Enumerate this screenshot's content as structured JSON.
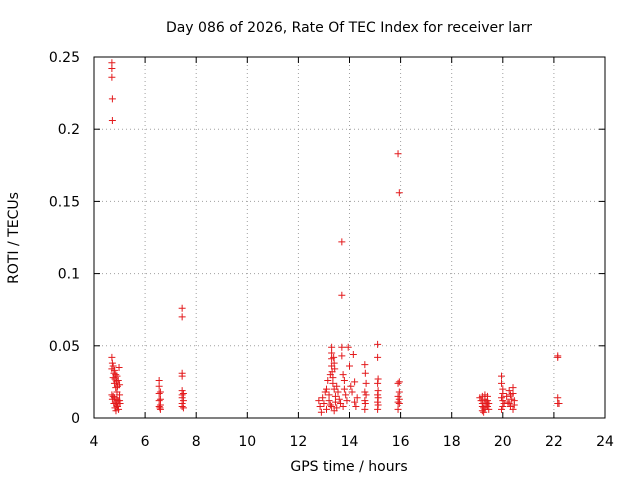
{
  "chart_data": {
    "type": "scatter",
    "title": "Day 086 of 2026, Rate Of TEC Index for receiver larr",
    "xlabel": "GPS time / hours",
    "ylabel": "ROTI / TECUs",
    "xlim": [
      4,
      24
    ],
    "ylim": [
      0,
      0.25
    ],
    "xticks": [
      4,
      6,
      8,
      10,
      12,
      14,
      16,
      18,
      20,
      22,
      24
    ],
    "yticks": [
      0,
      0.05,
      0.1,
      0.15,
      0.2,
      0.25
    ],
    "ytick_labels": [
      "0",
      "0.05",
      "0.1",
      "0.15",
      "0.2",
      "0.25"
    ],
    "grid": true,
    "marker": "+",
    "color": "#e31a1c",
    "series": [
      {
        "name": "ROTI",
        "points": [
          [
            4.7,
            0.246
          ],
          [
            4.7,
            0.242
          ],
          [
            4.7,
            0.236
          ],
          [
            4.72,
            0.221
          ],
          [
            4.72,
            0.206
          ],
          [
            4.7,
            0.042
          ],
          [
            4.72,
            0.038
          ],
          [
            4.75,
            0.036
          ],
          [
            4.7,
            0.034
          ],
          [
            4.8,
            0.033
          ],
          [
            4.78,
            0.031
          ],
          [
            4.85,
            0.03
          ],
          [
            4.9,
            0.029
          ],
          [
            4.75,
            0.028
          ],
          [
            4.82,
            0.027
          ],
          [
            4.95,
            0.026
          ],
          [
            4.88,
            0.025
          ],
          [
            4.8,
            0.024
          ],
          [
            5.0,
            0.023
          ],
          [
            4.92,
            0.022
          ],
          [
            4.85,
            0.021
          ],
          [
            4.7,
            0.016
          ],
          [
            4.75,
            0.015
          ],
          [
            4.8,
            0.014
          ],
          [
            4.9,
            0.013
          ],
          [
            4.95,
            0.012
          ],
          [
            4.85,
            0.011
          ],
          [
            4.78,
            0.01
          ],
          [
            4.88,
            0.009
          ],
          [
            4.92,
            0.008
          ],
          [
            4.82,
            0.007
          ],
          [
            4.96,
            0.006
          ],
          [
            5.0,
            0.012
          ],
          [
            5.02,
            0.01
          ],
          [
            4.72,
            0.013
          ],
          [
            4.98,
            0.035
          ],
          [
            5.0,
            0.016
          ],
          [
            4.9,
            0.018
          ],
          [
            4.86,
            0.005
          ],
          [
            6.55,
            0.026
          ],
          [
            6.55,
            0.022
          ],
          [
            6.6,
            0.018
          ],
          [
            6.55,
            0.017
          ],
          [
            6.6,
            0.013
          ],
          [
            6.55,
            0.012
          ],
          [
            6.6,
            0.009
          ],
          [
            6.55,
            0.008
          ],
          [
            6.58,
            0.007
          ],
          [
            6.6,
            0.006
          ],
          [
            7.45,
            0.076
          ],
          [
            7.45,
            0.07
          ],
          [
            7.45,
            0.031
          ],
          [
            7.45,
            0.029
          ],
          [
            7.45,
            0.019
          ],
          [
            7.5,
            0.017
          ],
          [
            7.45,
            0.016
          ],
          [
            7.45,
            0.014
          ],
          [
            7.5,
            0.012
          ],
          [
            7.45,
            0.01
          ],
          [
            7.45,
            0.008
          ],
          [
            7.5,
            0.007
          ],
          [
            12.8,
            0.012
          ],
          [
            12.85,
            0.008
          ],
          [
            12.9,
            0.004
          ],
          [
            12.95,
            0.014
          ],
          [
            13.0,
            0.01
          ],
          [
            13.05,
            0.018
          ],
          [
            13.1,
            0.006
          ],
          [
            13.1,
            0.02
          ],
          [
            13.15,
            0.026
          ],
          [
            13.2,
            0.016
          ],
          [
            13.2,
            0.012
          ],
          [
            13.25,
            0.03
          ],
          [
            13.3,
            0.049
          ],
          [
            13.3,
            0.045
          ],
          [
            13.3,
            0.041
          ],
          [
            13.3,
            0.036
          ],
          [
            13.32,
            0.032
          ],
          [
            13.35,
            0.028
          ],
          [
            13.35,
            0.024
          ],
          [
            13.4,
            0.02
          ],
          [
            13.38,
            0.042
          ],
          [
            13.4,
            0.038
          ],
          [
            13.42,
            0.034
          ],
          [
            13.45,
            0.015
          ],
          [
            13.45,
            0.011
          ],
          [
            13.5,
            0.007
          ],
          [
            13.4,
            0.005
          ],
          [
            13.3,
            0.008
          ],
          [
            13.25,
            0.009
          ],
          [
            13.5,
            0.022
          ],
          [
            13.55,
            0.018
          ],
          [
            13.6,
            0.013
          ],
          [
            13.65,
            0.01
          ],
          [
            13.7,
            0.122
          ],
          [
            13.7,
            0.085
          ],
          [
            13.7,
            0.049
          ],
          [
            13.7,
            0.043
          ],
          [
            13.75,
            0.03
          ],
          [
            13.8,
            0.026
          ],
          [
            13.8,
            0.02
          ],
          [
            13.85,
            0.016
          ],
          [
            13.9,
            0.012
          ],
          [
            13.75,
            0.008
          ],
          [
            13.95,
            0.049
          ],
          [
            14.0,
            0.036
          ],
          [
            14.05,
            0.022
          ],
          [
            14.1,
            0.018
          ],
          [
            14.15,
            0.044
          ],
          [
            14.2,
            0.025
          ],
          [
            14.2,
            0.011
          ],
          [
            14.25,
            0.008
          ],
          [
            14.3,
            0.014
          ],
          [
            14.6,
            0.037
          ],
          [
            14.62,
            0.031
          ],
          [
            14.65,
            0.024
          ],
          [
            14.6,
            0.018
          ],
          [
            14.65,
            0.016
          ],
          [
            14.6,
            0.012
          ],
          [
            14.62,
            0.01
          ],
          [
            14.6,
            0.006
          ],
          [
            15.1,
            0.051
          ],
          [
            15.1,
            0.042
          ],
          [
            15.12,
            0.027
          ],
          [
            15.1,
            0.024
          ],
          [
            15.12,
            0.019
          ],
          [
            15.1,
            0.016
          ],
          [
            15.12,
            0.014
          ],
          [
            15.1,
            0.011
          ],
          [
            15.12,
            0.009
          ],
          [
            15.1,
            0.006
          ],
          [
            15.9,
            0.183
          ],
          [
            15.95,
            0.156
          ],
          [
            15.95,
            0.025
          ],
          [
            15.9,
            0.024
          ],
          [
            15.95,
            0.018
          ],
          [
            15.9,
            0.015
          ],
          [
            15.95,
            0.013
          ],
          [
            15.9,
            0.011
          ],
          [
            15.95,
            0.01
          ],
          [
            15.9,
            0.006
          ],
          [
            19.1,
            0.014
          ],
          [
            19.15,
            0.012
          ],
          [
            19.2,
            0.01
          ],
          [
            19.2,
            0.008
          ],
          [
            19.25,
            0.007
          ],
          [
            19.2,
            0.005
          ],
          [
            19.3,
            0.016
          ],
          [
            19.3,
            0.013
          ],
          [
            19.35,
            0.011
          ],
          [
            19.35,
            0.009
          ],
          [
            19.3,
            0.006
          ],
          [
            19.4,
            0.015
          ],
          [
            19.4,
            0.012
          ],
          [
            19.4,
            0.008
          ],
          [
            19.45,
            0.01
          ],
          [
            19.45,
            0.006
          ],
          [
            19.2,
            0.015
          ],
          [
            19.25,
            0.004
          ],
          [
            19.95,
            0.029
          ],
          [
            19.95,
            0.024
          ],
          [
            20.0,
            0.02
          ],
          [
            20.0,
            0.017
          ],
          [
            19.95,
            0.014
          ],
          [
            20.0,
            0.012
          ],
          [
            20.05,
            0.01
          ],
          [
            20.0,
            0.008
          ],
          [
            19.95,
            0.006
          ],
          [
            20.15,
            0.015
          ],
          [
            20.2,
            0.011
          ],
          [
            20.25,
            0.019
          ],
          [
            20.3,
            0.016
          ],
          [
            20.35,
            0.013
          ],
          [
            20.4,
            0.021
          ],
          [
            20.4,
            0.017
          ],
          [
            20.45,
            0.012
          ],
          [
            20.45,
            0.009
          ],
          [
            20.4,
            0.006
          ],
          [
            20.3,
            0.008
          ],
          [
            20.25,
            0.01
          ],
          [
            22.15,
            0.043
          ],
          [
            22.15,
            0.042
          ],
          [
            22.15,
            0.014
          ],
          [
            22.2,
            0.01
          ],
          [
            22.15,
            0.01
          ]
        ]
      }
    ]
  }
}
